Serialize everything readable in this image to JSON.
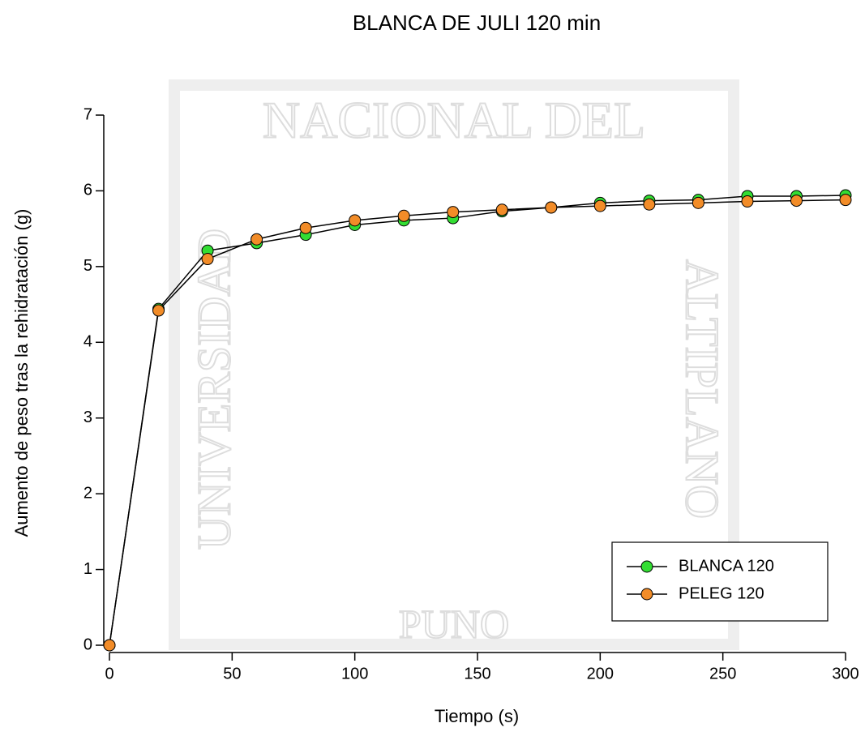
{
  "chart_data": {
    "type": "line",
    "title": "BLANCA DE JULI 120 min",
    "xlabel": "Tiempo (s)",
    "ylabel": "Aumento de peso tras la rehidratación (g)",
    "x": [
      0,
      20,
      40,
      60,
      80,
      100,
      120,
      140,
      160,
      180,
      200,
      220,
      240,
      260,
      280,
      300
    ],
    "series": [
      {
        "name": "BLANCA 120",
        "color": "#33dd33",
        "values": [
          0,
          4.44,
          5.21,
          5.31,
          5.42,
          5.55,
          5.61,
          5.64,
          5.73,
          5.78,
          5.84,
          5.87,
          5.88,
          5.93,
          5.93,
          5.94
        ]
      },
      {
        "name": "PELEG 120",
        "color": "#f28c28",
        "values": [
          0,
          4.42,
          5.1,
          5.36,
          5.51,
          5.61,
          5.67,
          5.72,
          5.75,
          5.78,
          5.8,
          5.82,
          5.84,
          5.86,
          5.87,
          5.88
        ]
      }
    ],
    "xlim": [
      0,
      300
    ],
    "xticks": [
      0,
      50,
      100,
      150,
      200,
      250,
      300
    ],
    "ylim": [
      0,
      7
    ],
    "yticks": [
      0,
      1,
      2,
      3,
      4,
      5,
      6,
      7
    ],
    "legend": "lower right"
  },
  "watermark": {
    "texts": [
      "NACIONAL DEL",
      "UNIVERSIDAD",
      "ALTIPLANO",
      "PUNO"
    ]
  }
}
